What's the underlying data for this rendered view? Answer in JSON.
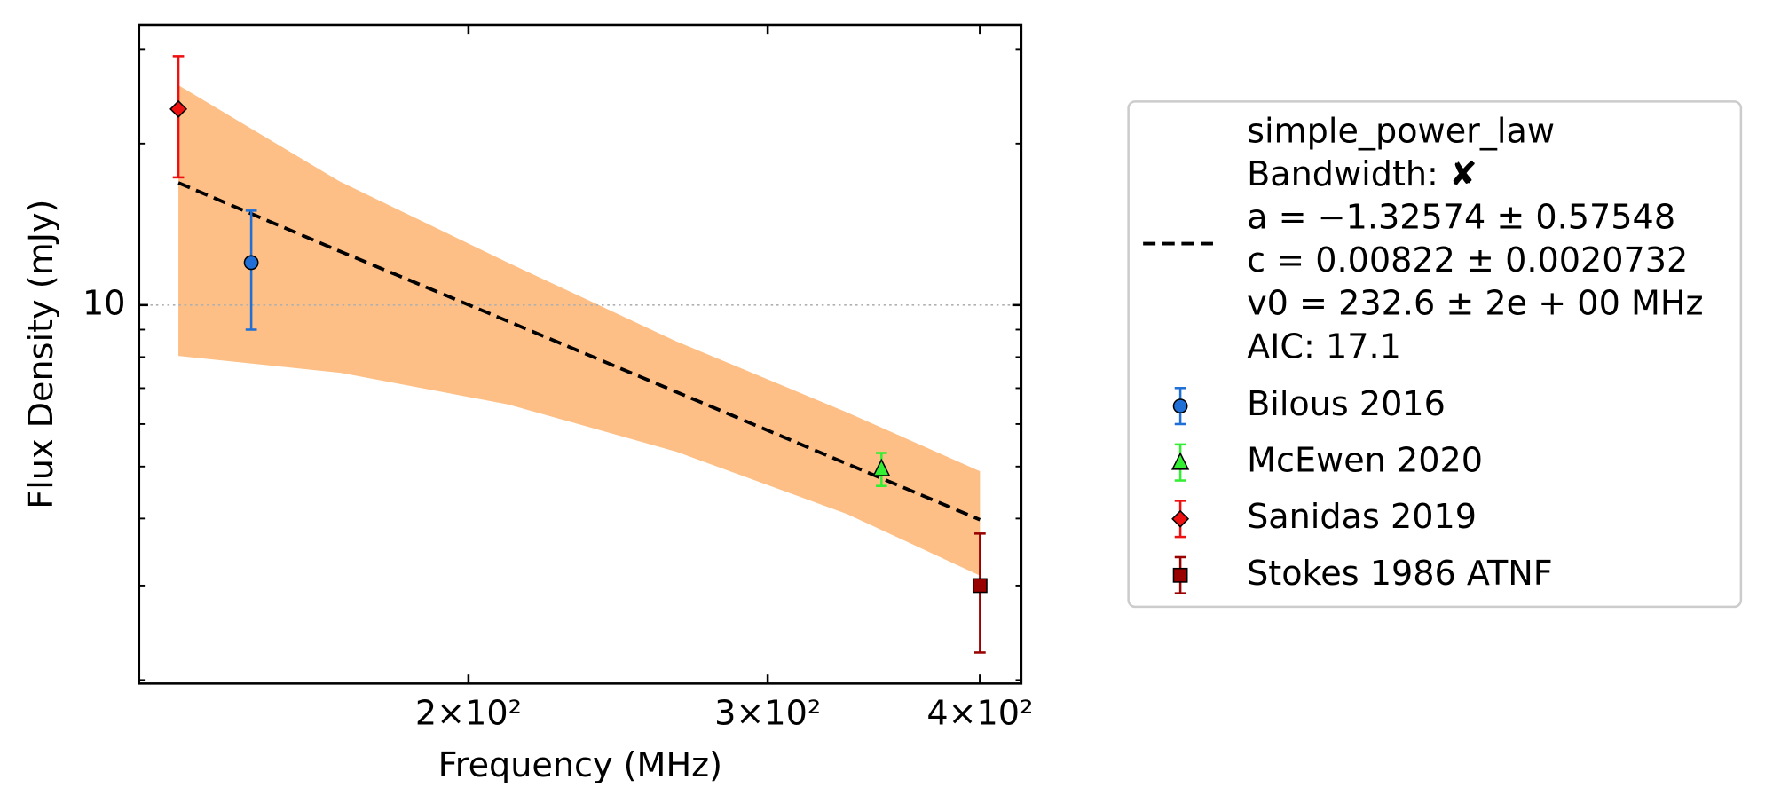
{
  "chart_data": {
    "type": "scatter",
    "xlabel": "Frequency (MHz)",
    "ylabel": "Flux Density (mJy)",
    "xlog": true,
    "ylog": true,
    "xlim": [
      128,
      423
    ],
    "ylim": [
      1.97,
      33.3
    ],
    "xticks": [
      {
        "value": 200,
        "label": "2×10²"
      },
      {
        "value": 300,
        "label": "3×10²"
      },
      {
        "value": 400,
        "label": "4×10²"
      }
    ],
    "yticks": [
      10
    ],
    "yminorticks": [
      2,
      3,
      4,
      5,
      6,
      7,
      8,
      9,
      20,
      30
    ],
    "grid": true,
    "legend": "outside right",
    "fit": {
      "color": "#000000",
      "band_color": "#fdbf86",
      "x": [
        135,
        168,
        211,
        265,
        334,
        400
      ],
      "values": [
        16.9,
        12.6,
        9.33,
        6.89,
        5.06,
        3.98
      ],
      "band_upper": [
        25.7,
        17.0,
        12.0,
        8.56,
        6.31,
        4.9
      ],
      "band_lower": [
        8.04,
        7.48,
        6.53,
        5.33,
        4.08,
        3.13
      ],
      "legend_lines": [
        "simple_power_law",
        "Bandwidth: ✘",
        "a = −1.32574 ± 0.57548",
        "c = 0.00822 ± 0.0020732",
        "v0 = 232.6 ± 2e + 00 MHz",
        "AIC: 17.1"
      ]
    },
    "series": [
      {
        "name": "Bilous 2016",
        "color": "#1f6fd6",
        "marker": "circle",
        "x": [
          149
        ],
        "values": [
          12.0
        ],
        "errors": [
          3.0
        ]
      },
      {
        "name": "McEwen 2020",
        "color": "#33ee33",
        "marker": "triangle",
        "x": [
          350
        ],
        "values": [
          4.95
        ],
        "errors": [
          0.35
        ]
      },
      {
        "name": "Sanidas 2019",
        "color": "#ee1111",
        "marker": "diamond",
        "x": [
          135
        ],
        "values": [
          23.2
        ],
        "errors": [
          5.9
        ]
      },
      {
        "name": "Stokes 1986 ATNF",
        "color": "#990000",
        "marker": "square",
        "x": [
          400
        ],
        "values": [
          3.0
        ],
        "errors": [
          0.75
        ]
      }
    ]
  }
}
